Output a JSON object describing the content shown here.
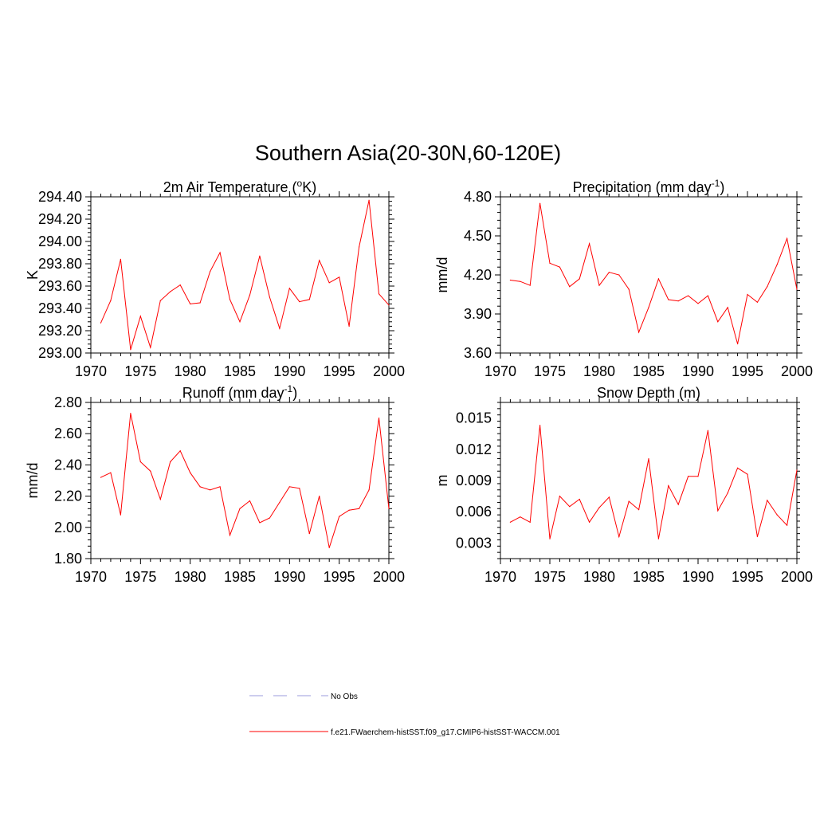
{
  "figure": {
    "title": "Southern Asia(20-30N,60-120E)"
  },
  "legend": {
    "entries": [
      {
        "label": "No Obs",
        "color": "#9b9bdc",
        "dash": true
      },
      {
        "label": "f.e21.FWaerchem-histSST.f09_g17.CMIP6-histSST-WACCM.001",
        "color": "#ff0000",
        "dash": false
      }
    ]
  },
  "chart_data": [
    {
      "type": "line",
      "title_main": "2m Air Temperature (",
      "title_sup1": "o",
      "title_rest": "K)",
      "ylabel": "K",
      "xlim": [
        1970,
        2000
      ],
      "ylim": [
        293.0,
        294.4
      ],
      "xticks": [
        "1970",
        "1975",
        "1980",
        "1985",
        "1990",
        "1995",
        "2000"
      ],
      "yticks": [
        "293.00",
        "293.20",
        "293.40",
        "293.60",
        "293.80",
        "294.00",
        "294.20",
        "294.40"
      ],
      "ytick_values": [
        293.0,
        293.2,
        293.4,
        293.6,
        293.8,
        294.0,
        294.2,
        294.4
      ],
      "series": [
        {
          "color": "#ff0000",
          "x": [
            1971,
            1972,
            1973,
            1974,
            1975,
            1976,
            1977,
            1978,
            1979,
            1980,
            1981,
            1982,
            1983,
            1984,
            1985,
            1986,
            1987,
            1988,
            1989,
            1990,
            1991,
            1992,
            1993,
            1994,
            1995,
            1996,
            1997,
            1998,
            1999,
            2000
          ],
          "values": [
            293.27,
            293.47,
            293.84,
            293.03,
            293.33,
            293.05,
            293.47,
            293.55,
            293.61,
            293.44,
            293.45,
            293.73,
            293.9,
            293.48,
            293.28,
            293.52,
            293.87,
            293.5,
            293.22,
            293.58,
            293.46,
            293.48,
            293.83,
            293.63,
            293.68,
            293.24,
            293.95,
            294.37,
            293.53,
            293.43
          ]
        }
      ]
    },
    {
      "type": "line",
      "title_main": "Precipitation (mm day",
      "title_sup1": "-1",
      "title_rest": ")",
      "ylabel": "mm/d",
      "xlim": [
        1970,
        2000
      ],
      "ylim": [
        3.6,
        4.8
      ],
      "xticks": [
        "1970",
        "1975",
        "1980",
        "1985",
        "1990",
        "1995",
        "2000"
      ],
      "yticks": [
        "3.60",
        "3.90",
        "4.20",
        "4.50",
        "4.80"
      ],
      "ytick_values": [
        3.6,
        3.9,
        4.2,
        4.5,
        4.8
      ],
      "series": [
        {
          "color": "#ff0000",
          "x": [
            1971,
            1972,
            1973,
            1974,
            1975,
            1976,
            1977,
            1978,
            1979,
            1980,
            1981,
            1982,
            1983,
            1984,
            1985,
            1986,
            1987,
            1988,
            1989,
            1990,
            1991,
            1992,
            1993,
            1994,
            1995,
            1996,
            1997,
            1998,
            1999,
            2000
          ],
          "values": [
            4.16,
            4.15,
            4.12,
            4.75,
            4.29,
            4.26,
            4.11,
            4.17,
            4.44,
            4.12,
            4.22,
            4.2,
            4.09,
            3.76,
            3.95,
            4.17,
            4.01,
            4.0,
            4.04,
            3.98,
            4.04,
            3.84,
            3.95,
            3.67,
            4.05,
            3.99,
            4.11,
            4.28,
            4.48,
            4.09
          ]
        }
      ]
    },
    {
      "type": "line",
      "title_main": "Runoff (mm day",
      "title_sup1": "-1",
      "title_rest": ")",
      "ylabel": "mm/d",
      "xlim": [
        1970,
        2000
      ],
      "ylim": [
        1.8,
        2.8
      ],
      "xticks": [
        "1970",
        "1975",
        "1980",
        "1985",
        "1990",
        "1995",
        "2000"
      ],
      "yticks": [
        "1.80",
        "2.00",
        "2.20",
        "2.40",
        "2.60",
        "2.80"
      ],
      "ytick_values": [
        1.8,
        2.0,
        2.2,
        2.4,
        2.6,
        2.8
      ],
      "series": [
        {
          "color": "#ff0000",
          "x": [
            1971,
            1972,
            1973,
            1974,
            1975,
            1976,
            1977,
            1978,
            1979,
            1980,
            1981,
            1982,
            1983,
            1984,
            1985,
            1986,
            1987,
            1988,
            1989,
            1990,
            1991,
            1992,
            1993,
            1994,
            1995,
            1996,
            1997,
            1998,
            1999,
            2000
          ],
          "values": [
            2.32,
            2.35,
            2.08,
            2.73,
            2.42,
            2.36,
            2.18,
            2.42,
            2.49,
            2.35,
            2.26,
            2.24,
            2.26,
            1.95,
            2.12,
            2.17,
            2.03,
            2.06,
            2.16,
            2.26,
            2.25,
            1.96,
            2.2,
            1.87,
            2.07,
            2.11,
            2.12,
            2.24,
            2.7,
            2.12
          ]
        }
      ]
    },
    {
      "type": "line",
      "title_main": "Snow Depth (m)",
      "title_sup1": "",
      "title_rest": "",
      "ylabel": "m",
      "xlim": [
        1970,
        2000
      ],
      "ylim": [
        0.0015,
        0.0165
      ],
      "xticks": [
        "1970",
        "1975",
        "1980",
        "1985",
        "1990",
        "1995",
        "2000"
      ],
      "yticks": [
        "0.003",
        "0.006",
        "0.009",
        "0.012",
        "0.015"
      ],
      "ytick_values": [
        0.003,
        0.006,
        0.009,
        0.012,
        0.015
      ],
      "series": [
        {
          "color": "#ff0000",
          "x": [
            1971,
            1972,
            1973,
            1974,
            1975,
            1976,
            1977,
            1978,
            1979,
            1980,
            1981,
            1982,
            1983,
            1984,
            1985,
            1986,
            1987,
            1988,
            1989,
            1990,
            1991,
            1992,
            1993,
            1994,
            1995,
            1996,
            1997,
            1998,
            1999,
            2000
          ],
          "values": [
            0.005,
            0.0055,
            0.005,
            0.0143,
            0.0034,
            0.0075,
            0.0065,
            0.0072,
            0.005,
            0.0064,
            0.0074,
            0.0036,
            0.007,
            0.0062,
            0.0111,
            0.0034,
            0.0085,
            0.0067,
            0.0094,
            0.0094,
            0.0138,
            0.0061,
            0.0078,
            0.0102,
            0.0096,
            0.0036,
            0.0071,
            0.0057,
            0.0047,
            0.01
          ]
        }
      ]
    }
  ]
}
